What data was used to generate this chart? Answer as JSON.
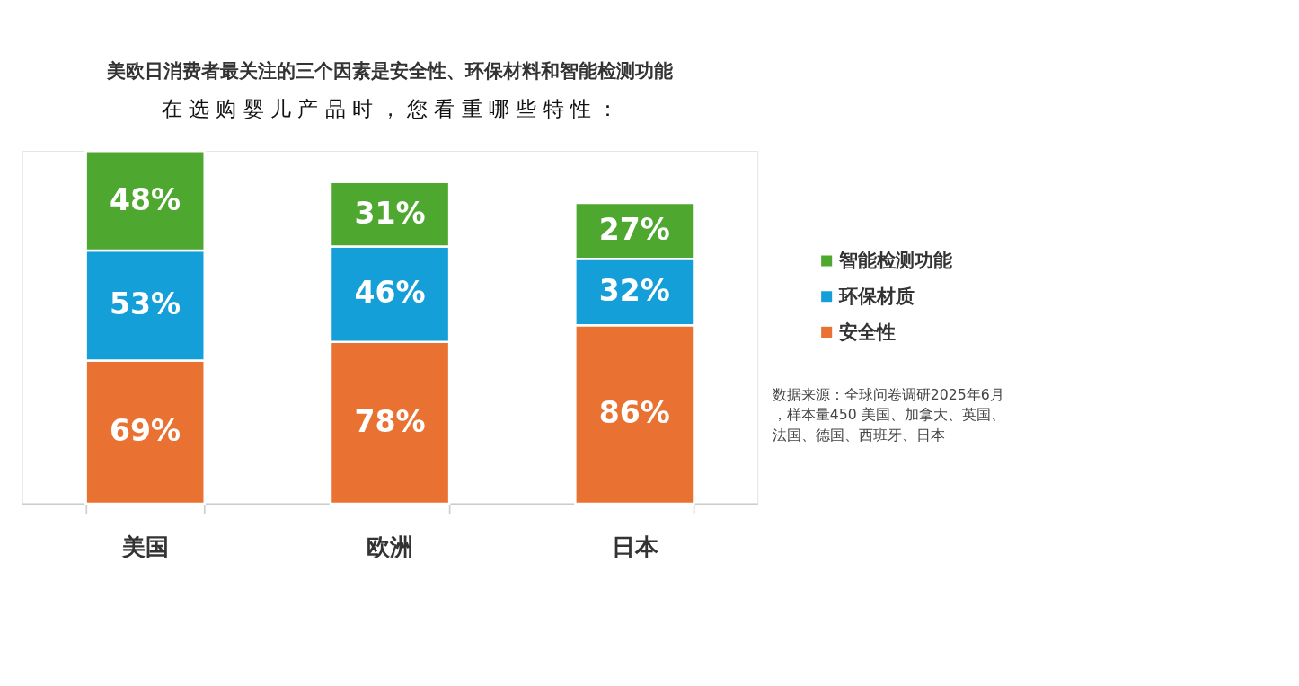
{
  "chart_data": {
    "type": "bar",
    "title": "美欧日消费者最关注的三个因素是安全性、环保材料和智能检测功能",
    "subtitle": "在 选 购 婴 儿 产 品 时 ， 您 看 重 哪 些 特 性 ：",
    "categories": [
      "美国",
      "欧洲",
      "日本"
    ],
    "stacked": true,
    "series": [
      {
        "name": "安全性",
        "color": "#e97132",
        "values": [
          69,
          78,
          86
        ],
        "value_labels": [
          "69%",
          "78%",
          "86%"
        ]
      },
      {
        "name": "环保材质",
        "color": "#159fd9",
        "values": [
          53,
          46,
          32
        ],
        "value_labels": [
          "53%",
          "46%",
          "32%"
        ]
      },
      {
        "name": "智能检测功能",
        "color": "#4ea72e",
        "values": [
          48,
          31,
          27
        ],
        "value_labels": [
          "48%",
          "31%",
          "27%"
        ]
      }
    ],
    "legend": "right",
    "grid": false,
    "tick_labels": "x",
    "annotations": [
      "数据来源：全球问卷调研2025年6月，样本量450 美国、加拿大、英国、法国、德国、西班牙、日本"
    ]
  }
}
